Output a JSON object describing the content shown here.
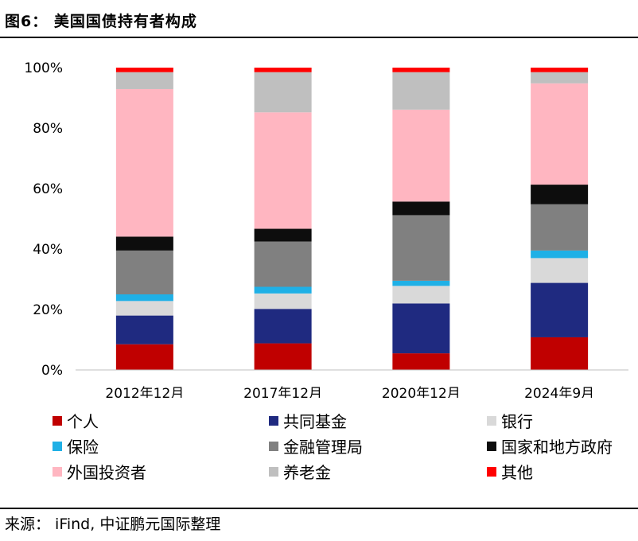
{
  "figure": {
    "title": "图6： 美国国债持有者构成",
    "source": "来源： iFind, 中证鹏元国际整理"
  },
  "chart_data": {
    "type": "stacked-bar-100",
    "title": "美国国债持有者构成",
    "categories": [
      "2012年12月",
      "2017年12月",
      "2020年12月",
      "2024年9月"
    ],
    "y_ticks": [
      "0%",
      "20%",
      "40%",
      "60%",
      "80%",
      "100%"
    ],
    "ylim": [
      0,
      100
    ],
    "legend_position": "bottom",
    "series": [
      {
        "name": "个人",
        "color": "#c00000",
        "values": [
          8.5,
          8.8,
          5.5,
          10.8
        ]
      },
      {
        "name": "共同基金",
        "color": "#1f2a80",
        "values": [
          9.5,
          11.4,
          16.5,
          18.0
        ]
      },
      {
        "name": "银行",
        "color": "#d9d9d9",
        "values": [
          4.8,
          5.1,
          5.8,
          8.2
        ]
      },
      {
        "name": "保险",
        "color": "#1fb0e6",
        "values": [
          2.2,
          2.2,
          1.7,
          2.5
        ]
      },
      {
        "name": "金融管理局",
        "color": "#808080",
        "values": [
          14.5,
          15.0,
          21.7,
          15.3
        ]
      },
      {
        "name": "国家和地方政府",
        "color": "#0d0d0d",
        "values": [
          4.6,
          4.2,
          4.5,
          6.5
        ]
      },
      {
        "name": "外国投资者",
        "color": "#ffb6c1",
        "values": [
          48.8,
          38.5,
          30.4,
          33.5
        ]
      },
      {
        "name": "养老金",
        "color": "#bfbfbf",
        "values": [
          5.6,
          13.3,
          12.4,
          3.7
        ]
      },
      {
        "name": "其他",
        "color": "#ff0000",
        "values": [
          1.5,
          1.5,
          1.5,
          1.5
        ]
      }
    ]
  }
}
